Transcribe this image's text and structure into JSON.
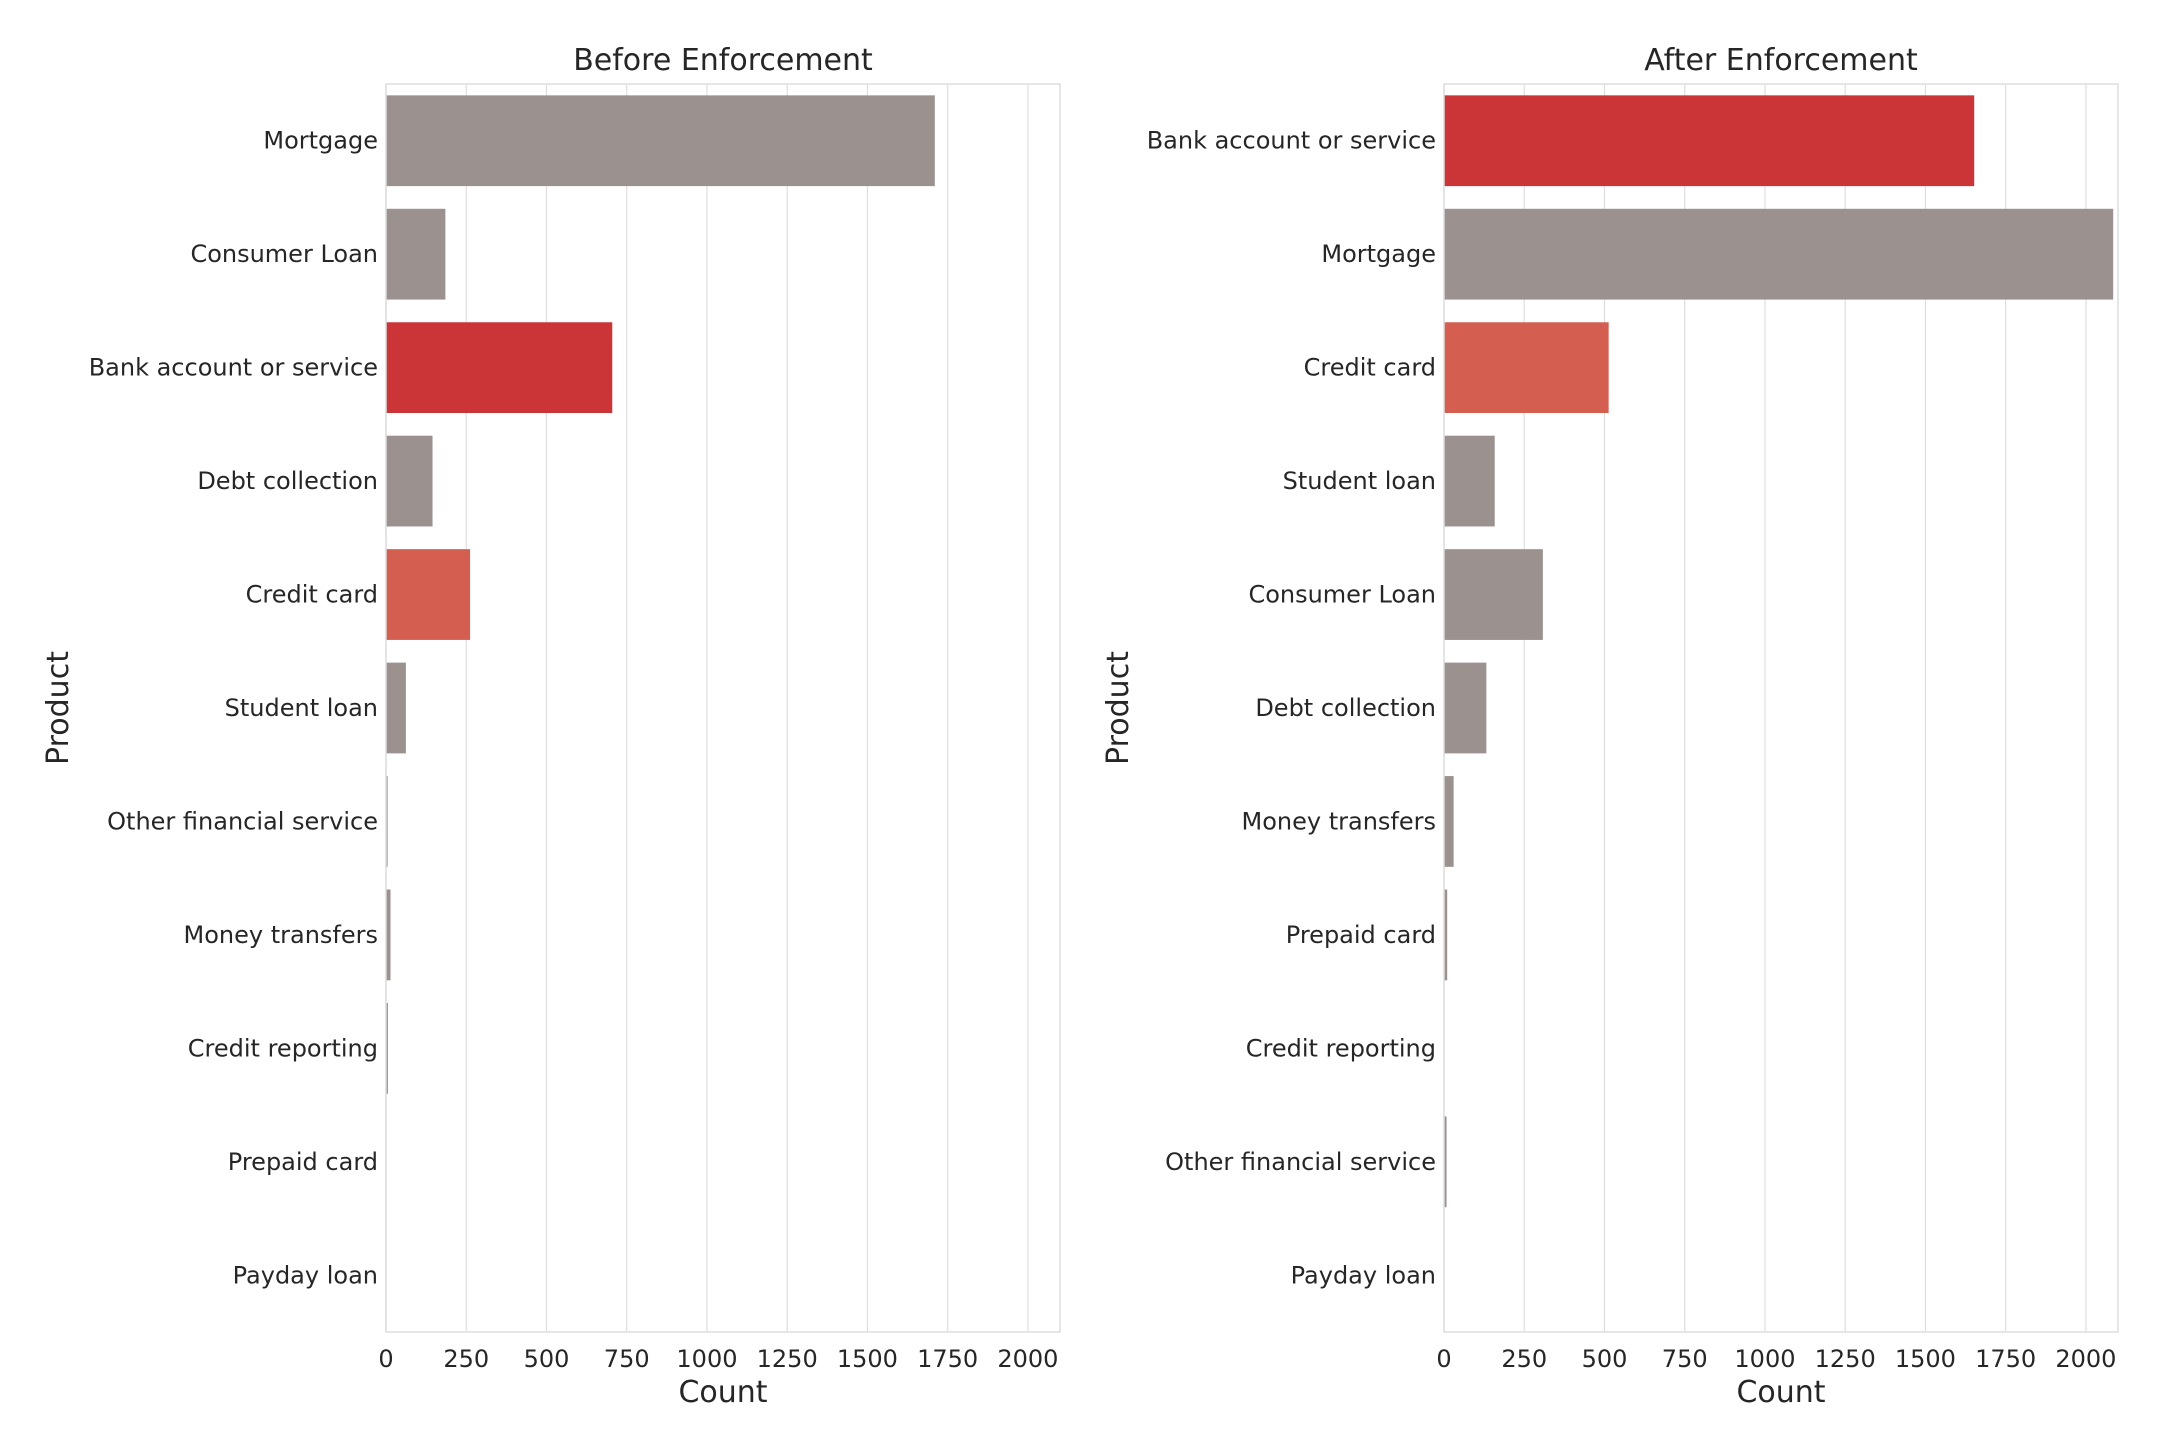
{
  "chart_data": [
    {
      "type": "bar",
      "orientation": "horizontal",
      "title": "Before Enforcement",
      "xlabel": "Count",
      "ylabel": "Product",
      "xlim": [
        0,
        2100
      ],
      "xticks": [
        0,
        250,
        500,
        750,
        1000,
        1250,
        1500,
        1750,
        2000
      ],
      "grid": true,
      "categories": [
        "Mortgage",
        "Consumer Loan",
        "Bank account or service",
        "Debt collection",
        "Credit card",
        "Student loan",
        "Other financial service",
        "Money transfers",
        "Credit reporting",
        "Prepaid card",
        "Payday loan"
      ],
      "values": [
        1710,
        185,
        705,
        145,
        262,
        62,
        5,
        14,
        6,
        0,
        0
      ],
      "colors": [
        "#9b918f",
        "#9b918f",
        "#cc3538",
        "#9b918f",
        "#d45f50",
        "#9b918f",
        "#9b918f",
        "#9b918f",
        "#9b918f",
        "#9b918f",
        "#9b918f"
      ]
    },
    {
      "type": "bar",
      "orientation": "horizontal",
      "title": "After Enforcement",
      "xlabel": "Count",
      "ylabel": "Product",
      "xlim": [
        0,
        2100
      ],
      "xticks": [
        0,
        250,
        500,
        750,
        1000,
        1250,
        1500,
        1750,
        2000
      ],
      "grid": true,
      "categories": [
        "Bank account or service",
        "Mortgage",
        "Credit card",
        "Student loan",
        "Consumer Loan",
        "Debt collection",
        "Money transfers",
        "Prepaid card",
        "Credit reporting",
        "Other financial service",
        "Payday loan"
      ],
      "values": [
        1652,
        2085,
        513,
        158,
        308,
        132,
        30,
        10,
        0,
        8,
        0
      ],
      "colors": [
        "#cc3538",
        "#9b918f",
        "#d45f50",
        "#9b918f",
        "#9b918f",
        "#9b918f",
        "#9b918f",
        "#9b918f",
        "#9b918f",
        "#9b918f",
        "#9b918f"
      ]
    }
  ]
}
